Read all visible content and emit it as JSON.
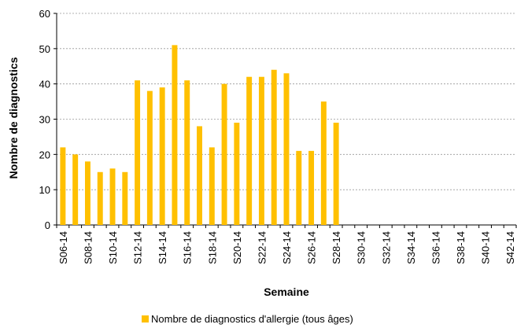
{
  "chart_data": {
    "type": "bar",
    "x_label": "Semaine",
    "y_label": "Nombre de diagnostics",
    "categories": [
      "S06-14",
      null,
      "S08-14",
      null,
      "S10-14",
      null,
      "S12-14",
      null,
      "S14-14",
      null,
      "S16-14",
      null,
      "S18-14",
      null,
      "S20-14",
      null,
      "S22-14",
      null,
      "S24-14",
      null,
      "S26-14",
      null,
      "S28-14",
      null,
      "S30-14",
      null,
      "S32-14",
      null,
      "S34-14",
      null,
      "S36-14",
      null,
      "S38-14",
      null,
      "S40-14",
      null,
      "S42-14"
    ],
    "series": [
      {
        "name": "Nombre de diagnostics d'allergie (tous âges)",
        "color": "#ffc000",
        "values": [
          22,
          20,
          18,
          15,
          16,
          15,
          41,
          38,
          39,
          51,
          41,
          28,
          22,
          40,
          29,
          42,
          42,
          44,
          43,
          21,
          21,
          35,
          29,
          null,
          null,
          null,
          null,
          null,
          null,
          null,
          null,
          null,
          null,
          null,
          null,
          null,
          null
        ]
      }
    ],
    "ylim": [
      0,
      60
    ],
    "yticks": [
      0,
      10,
      20,
      30,
      40,
      50,
      60
    ],
    "grid": true,
    "legend": "bottom"
  }
}
